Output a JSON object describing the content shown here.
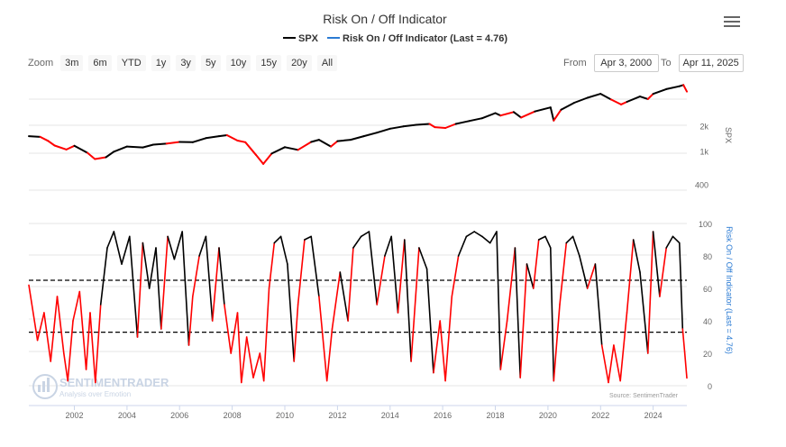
{
  "title": "Risk On / Off Indicator",
  "menu_icon": "hamburger-menu-icon",
  "legend": [
    {
      "label": "SPX",
      "color": "#000000"
    },
    {
      "label": "Risk On / Off Indicator (Last = 4.76)",
      "color": "#2b7bd3"
    }
  ],
  "zoom": {
    "label": "Zoom",
    "buttons": [
      "3m",
      "6m",
      "YTD",
      "1y",
      "3y",
      "5y",
      "10y",
      "15y",
      "20y",
      "All"
    ]
  },
  "range": {
    "from_label": "From",
    "from_value": "Apr 3, 2000",
    "to_label": "To",
    "to_value": "Apr 11, 2025"
  },
  "watermark": {
    "name": "SENTIMENTRADER",
    "tagline": "Analysis over Emotion"
  },
  "source": "Source: SentimenTrader",
  "colors": {
    "spx_on": "#000000",
    "risk_off": "#ff0000",
    "thresholds": "#000000",
    "axis_title": "#2b7bd3"
  },
  "chart_data": [
    {
      "type": "line",
      "name": "spx-panel",
      "ylabel": "SPX",
      "scale": "log",
      "ylim": [
        280,
        6000
      ],
      "yticks": [
        {
          "v": 2000,
          "label": "2k"
        },
        {
          "v": 1000,
          "label": "1k"
        },
        {
          "v": 400,
          "label": "400"
        }
      ],
      "xlim": [
        2000.27,
        2025.28
      ],
      "xticks": [
        2002,
        2004,
        2006,
        2008,
        2010,
        2012,
        2014,
        2016,
        2018,
        2020,
        2022,
        2024
      ],
      "series": [
        {
          "name": "SPX",
          "x": [
            2000.27,
            2000.7,
            2001.0,
            2001.25,
            2001.7,
            2002.0,
            2002.5,
            2002.78,
            2003.2,
            2003.5,
            2004.0,
            2004.6,
            2005.0,
            2005.5,
            2006.0,
            2006.5,
            2007.0,
            2007.5,
            2007.8,
            2008.2,
            2008.5,
            2008.9,
            2009.18,
            2009.5,
            2010.0,
            2010.5,
            2011.0,
            2011.3,
            2011.75,
            2012.0,
            2012.5,
            2013.0,
            2013.5,
            2014.0,
            2014.5,
            2015.0,
            2015.5,
            2015.7,
            2016.1,
            2016.5,
            2017.0,
            2017.5,
            2018.0,
            2018.2,
            2018.7,
            2018.98,
            2019.5,
            2020.1,
            2020.22,
            2020.5,
            2021.0,
            2021.5,
            2022.0,
            2022.4,
            2022.78,
            2023.0,
            2023.5,
            2023.8,
            2024.0,
            2024.5,
            2025.0,
            2025.15,
            2025.28
          ],
          "values": [
            1500,
            1470,
            1320,
            1160,
            1040,
            1150,
            950,
            800,
            840,
            980,
            1130,
            1100,
            1190,
            1220,
            1280,
            1270,
            1420,
            1500,
            1540,
            1330,
            1270,
            900,
            700,
            930,
            1110,
            1030,
            1280,
            1360,
            1130,
            1310,
            1360,
            1500,
            1650,
            1840,
            1960,
            2050,
            2100,
            1920,
            1880,
            2100,
            2270,
            2450,
            2820,
            2640,
            2910,
            2500,
            2950,
            3300,
            2300,
            3100,
            3750,
            4300,
            4790,
            4100,
            3580,
            3850,
            4450,
            4150,
            4780,
            5450,
            5900,
            6100,
            5100
          ],
          "state": [
            1,
            0,
            0,
            0,
            0,
            1,
            0,
            0,
            1,
            1,
            1,
            1,
            1,
            0,
            1,
            1,
            1,
            1,
            0,
            0,
            0,
            0,
            0,
            1,
            1,
            0,
            1,
            1,
            0,
            1,
            1,
            1,
            1,
            1,
            1,
            1,
            0,
            0,
            0,
            1,
            1,
            1,
            1,
            0,
            1,
            0,
            1,
            1,
            0,
            1,
            1,
            1,
            1,
            0,
            0,
            1,
            1,
            0,
            1,
            1,
            1,
            0,
            0
          ]
        }
      ]
    },
    {
      "type": "line",
      "name": "indicator-panel",
      "ylabel": "Risk On / Off Indicator (Last = 4.76)",
      "ylim": [
        0,
        100
      ],
      "yticks": [
        0,
        20,
        40,
        60,
        80,
        100
      ],
      "thresholds": [
        65,
        33
      ],
      "xlim": [
        2000.27,
        2025.28
      ],
      "series": [
        {
          "name": "Risk On / Off Indicator",
          "last": 4.76,
          "x": [
            2000.27,
            2000.6,
            2000.85,
            2001.1,
            2001.35,
            2001.6,
            2001.75,
            2001.95,
            2002.2,
            2002.45,
            2002.6,
            2002.8,
            2003.0,
            2003.25,
            2003.5,
            2003.8,
            2004.1,
            2004.4,
            2004.6,
            2004.85,
            2005.1,
            2005.3,
            2005.55,
            2005.8,
            2006.1,
            2006.35,
            2006.5,
            2006.75,
            2007.0,
            2007.25,
            2007.5,
            2007.7,
            2007.95,
            2008.2,
            2008.35,
            2008.55,
            2008.8,
            2009.05,
            2009.2,
            2009.4,
            2009.6,
            2009.85,
            2010.1,
            2010.35,
            2010.5,
            2010.75,
            2011.0,
            2011.3,
            2011.6,
            2011.8,
            2012.1,
            2012.4,
            2012.6,
            2012.9,
            2013.2,
            2013.5,
            2013.8,
            2014.05,
            2014.3,
            2014.55,
            2014.8,
            2015.1,
            2015.4,
            2015.65,
            2015.9,
            2016.1,
            2016.35,
            2016.6,
            2016.9,
            2017.2,
            2017.5,
            2017.8,
            2018.05,
            2018.2,
            2018.45,
            2018.75,
            2018.95,
            2019.2,
            2019.45,
            2019.65,
            2019.9,
            2020.1,
            2020.22,
            2020.45,
            2020.7,
            2020.95,
            2021.2,
            2021.5,
            2021.8,
            2022.05,
            2022.3,
            2022.5,
            2022.75,
            2023.0,
            2023.25,
            2023.5,
            2023.8,
            2024.0,
            2024.25,
            2024.5,
            2024.75,
            2025.0,
            2025.12,
            2025.2,
            2025.28
          ],
          "values": [
            62,
            28,
            45,
            15,
            55,
            20,
            3,
            40,
            58,
            10,
            45,
            2,
            50,
            85,
            95,
            75,
            92,
            30,
            88,
            60,
            85,
            35,
            92,
            78,
            95,
            25,
            55,
            80,
            92,
            40,
            85,
            50,
            20,
            45,
            2,
            30,
            5,
            20,
            3,
            60,
            88,
            92,
            75,
            15,
            50,
            90,
            92,
            55,
            3,
            35,
            70,
            40,
            85,
            92,
            95,
            50,
            80,
            92,
            45,
            90,
            15,
            85,
            72,
            8,
            40,
            3,
            55,
            80,
            92,
            95,
            92,
            88,
            95,
            10,
            40,
            85,
            5,
            75,
            60,
            90,
            92,
            85,
            3,
            50,
            88,
            92,
            80,
            60,
            75,
            25,
            2,
            25,
            3,
            45,
            90,
            70,
            20,
            95,
            55,
            85,
            92,
            88,
            35,
            20,
            4.76
          ],
          "state": [
            0,
            0,
            0,
            0,
            0,
            0,
            0,
            0,
            0,
            0,
            0,
            0,
            1,
            1,
            1,
            1,
            1,
            0,
            1,
            1,
            1,
            0,
            1,
            1,
            1,
            0,
            0,
            1,
            1,
            0,
            1,
            0,
            0,
            0,
            0,
            0,
            0,
            0,
            0,
            0,
            1,
            1,
            1,
            0,
            0,
            1,
            1,
            0,
            0,
            0,
            1,
            0,
            1,
            1,
            1,
            0,
            1,
            1,
            0,
            1,
            0,
            1,
            1,
            0,
            0,
            0,
            0,
            1,
            1,
            1,
            1,
            1,
            1,
            0,
            0,
            1,
            0,
            1,
            0,
            1,
            1,
            1,
            0,
            0,
            1,
            1,
            1,
            0,
            1,
            0,
            0,
            0,
            0,
            0,
            1,
            1,
            0,
            1,
            0,
            1,
            1,
            1,
            0,
            0,
            0
          ]
        }
      ]
    }
  ]
}
